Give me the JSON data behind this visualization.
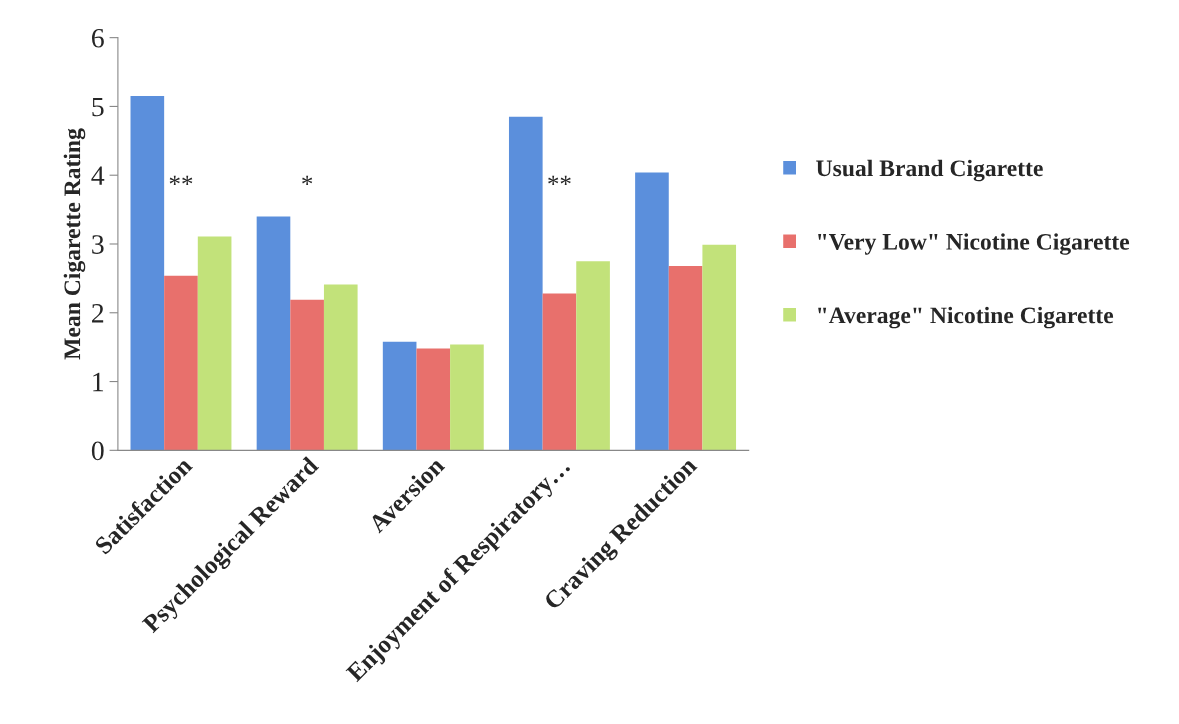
{
  "chart_data": {
    "type": "bar",
    "ylabel": "Mean Cigarette Rating",
    "categories": [
      "Satisfaction",
      "Psychological Reward",
      "Aversion",
      "Enjoyment of Respiratory…",
      "Craving Reduction"
    ],
    "series": [
      {
        "name": "Usual Brand Cigarette",
        "color": "#5b8fdc",
        "values": [
          5.15,
          3.4,
          1.58,
          4.85,
          4.04
        ]
      },
      {
        "name": "\"Very Low\" Nicotine Cigarette",
        "color": "#e8706c",
        "values": [
          2.54,
          2.19,
          1.48,
          2.28,
          2.68
        ]
      },
      {
        "name": "\"Average\" Nicotine Cigarette",
        "color": "#c2e27a",
        "values": [
          3.11,
          2.41,
          1.54,
          2.75,
          2.99
        ]
      }
    ],
    "ylim": [
      0,
      6
    ],
    "yticks": [
      0,
      1,
      2,
      3,
      4,
      5,
      6
    ],
    "grid": false,
    "legend": "right",
    "annotations": [
      "**",
      "*",
      "**"
    ]
  }
}
